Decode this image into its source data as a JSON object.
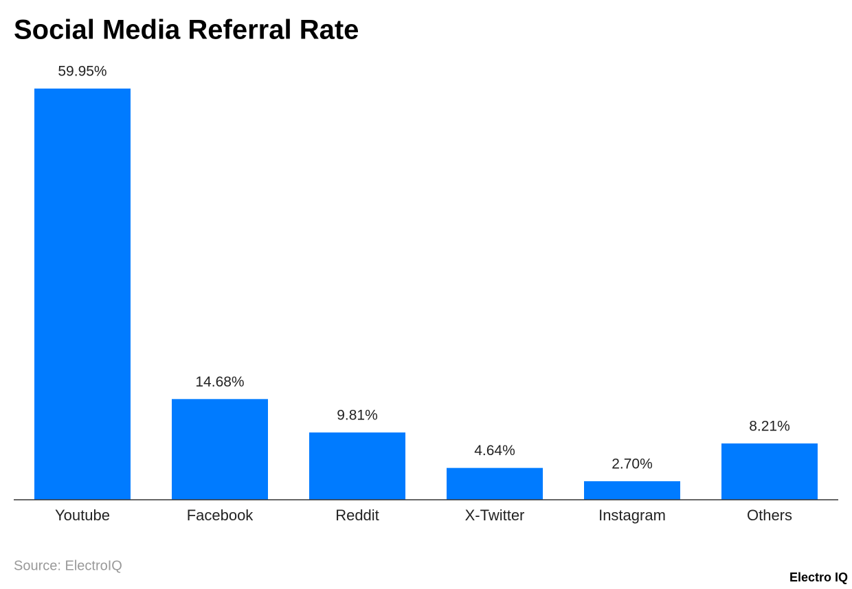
{
  "chart_data": {
    "type": "bar",
    "title": "Social Media Referral Rate",
    "categories": [
      "Youtube",
      "Facebook",
      "Reddit",
      "X-Twitter",
      "Instagram",
      "Others"
    ],
    "values": [
      59.95,
      14.68,
      9.81,
      4.64,
      2.7,
      8.21
    ],
    "value_labels": [
      "59.95%",
      "14.68%",
      "9.81%",
      "4.64%",
      "2.70%",
      "8.21%"
    ],
    "color": "#007bff",
    "ylim": [
      0,
      60
    ],
    "source": "Source: ElectroIQ",
    "brand": "Electro IQ"
  }
}
